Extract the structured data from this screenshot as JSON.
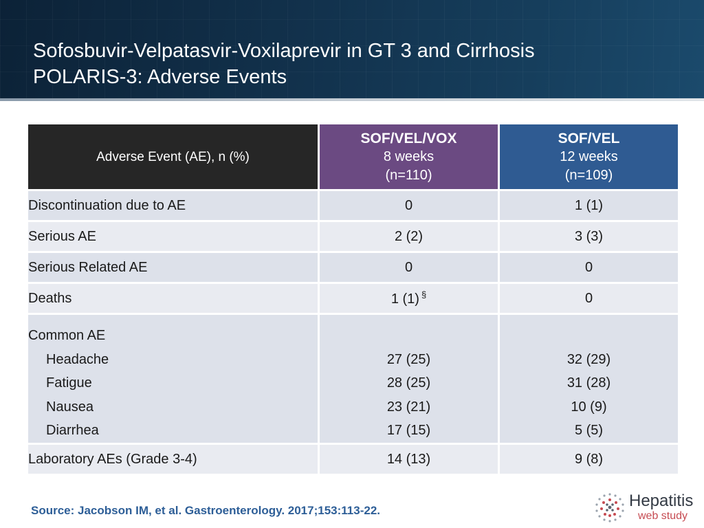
{
  "title": {
    "line1": "Sofosbuvir-Velpatasvir-Voxilaprevir in GT 3 and Cirrhosis",
    "line2": "POLARIS-3: Adverse Events"
  },
  "table": {
    "header": {
      "label": "Adverse Event (AE), n (%)",
      "col1": {
        "name": "SOF/VEL/VOX",
        "duration": "8 weeks",
        "n": "(n=110)"
      },
      "col2": {
        "name": "SOF/VEL",
        "duration": "12 weeks",
        "n": "(n=109)"
      }
    },
    "rows": [
      {
        "label": "Discontinuation due to AE",
        "v1": "0",
        "v2": "1 (1)"
      },
      {
        "label": "Serious AE",
        "v1": "2 (2)",
        "v2": "3 (3)"
      },
      {
        "label": "Serious Related AE",
        "v1": "0",
        "v2": "0"
      },
      {
        "label": "Deaths",
        "v1": "1 (1)",
        "v1_note": "§",
        "v2": "0"
      }
    ],
    "common": {
      "label": "Common AE",
      "items": [
        {
          "label": "Headache",
          "v1": "27 (25)",
          "v2": "32 (29)"
        },
        {
          "label": "Fatigue",
          "v1": "28 (25)",
          "v2": "31 (28)"
        },
        {
          "label": "Nausea",
          "v1": "23 (21)",
          "v2": "10 (9)"
        },
        {
          "label": "Diarrhea",
          "v1": "17 (15)",
          "v2": "5 (5)"
        }
      ]
    },
    "lab": {
      "label": "Laboratory AEs (Grade 3-4)",
      "v1": "14 (13)",
      "v2": "9 (8)"
    }
  },
  "source": "Source: Jacobson IM, et al. Gastroenterology. 2017;153:113-22.",
  "logo": {
    "line1": "Hepatitis",
    "line2": "web study",
    "icon": "dotted-globe-icon"
  },
  "colors": {
    "header_bg": "#12324d",
    "col_vox": "#6b4a82",
    "col_vel": "#2f5b92",
    "label_header": "#262626",
    "source_text": "#2d5e97",
    "logo_accent": "#c64b52"
  }
}
